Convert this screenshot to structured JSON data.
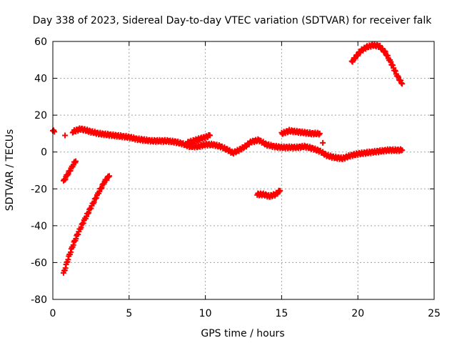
{
  "chart_data": {
    "type": "scatter",
    "title": "Day 338 of 2023, Sidereal Day-to-day VTEC variation (SDTVAR) for receiver falk",
    "xlabel": "GPS time / hours",
    "ylabel": "SDTVAR / TECUs",
    "xlim": [
      0,
      25
    ],
    "ylim": [
      -80,
      60
    ],
    "x_ticks": [
      0,
      5,
      10,
      15,
      20,
      25
    ],
    "x_tick_labels": [
      "0",
      "5",
      "10",
      "15",
      "20",
      "25"
    ],
    "y_ticks": [
      -80,
      -60,
      -40,
      -20,
      0,
      20,
      40,
      60
    ],
    "y_tick_labels": [
      "-80",
      "-60",
      "-40",
      "-20",
      "0",
      "20",
      "40",
      "60"
    ],
    "grid": true,
    "marker": "+",
    "series_color": "#ff0000",
    "series": [
      {
        "name": "start-point",
        "points": [
          [
            0.0,
            11.5
          ],
          [
            0.1,
            11.0
          ]
        ]
      },
      {
        "name": "early-dot",
        "points": [
          [
            0.8,
            9.0
          ]
        ]
      },
      {
        "name": "lower-steep-segment",
        "points": [
          [
            0.7,
            -66
          ],
          [
            1.0,
            -58
          ],
          [
            1.3,
            -51
          ],
          [
            1.6,
            -45
          ],
          [
            2.0,
            -38
          ],
          [
            2.5,
            -30
          ],
          [
            3.0,
            -22
          ],
          [
            3.4,
            -16
          ],
          [
            3.7,
            -13
          ]
        ]
      },
      {
        "name": "short-steep-segment",
        "points": [
          [
            0.7,
            -16
          ],
          [
            0.9,
            -13
          ],
          [
            1.2,
            -9
          ],
          [
            1.4,
            -6
          ],
          [
            1.5,
            -5
          ]
        ]
      },
      {
        "name": "main-band",
        "points": [
          [
            1.3,
            11
          ],
          [
            1.8,
            12.5
          ],
          [
            2.1,
            12
          ],
          [
            2.5,
            11
          ],
          [
            3.0,
            10
          ],
          [
            3.5,
            9.5
          ],
          [
            4.0,
            9
          ],
          [
            4.5,
            8.5
          ],
          [
            5.0,
            8
          ],
          [
            5.5,
            7
          ],
          [
            6.0,
            6.5
          ],
          [
            6.5,
            6
          ],
          [
            7.0,
            6
          ],
          [
            7.5,
            6
          ],
          [
            8.0,
            5.5
          ],
          [
            8.5,
            4.5
          ],
          [
            9.0,
            3
          ],
          [
            9.5,
            3
          ],
          [
            10.0,
            4
          ],
          [
            10.5,
            4
          ],
          [
            11.0,
            3
          ],
          [
            11.5,
            1
          ],
          [
            11.8,
            -0.5
          ],
          [
            12.2,
            1
          ],
          [
            12.6,
            3
          ],
          [
            13.0,
            5.5
          ],
          [
            13.5,
            6.5
          ],
          [
            14.0,
            4
          ],
          [
            14.5,
            3
          ],
          [
            15.0,
            2.5
          ],
          [
            15.5,
            2.5
          ],
          [
            16.0,
            2.5
          ],
          [
            16.5,
            3
          ],
          [
            17.0,
            2
          ],
          [
            17.5,
            0.5
          ],
          [
            18.0,
            -2
          ],
          [
            18.5,
            -3
          ],
          [
            19.0,
            -3.5
          ],
          [
            19.5,
            -2
          ],
          [
            20.0,
            -1
          ],
          [
            20.5,
            -0.5
          ],
          [
            21.0,
            0
          ],
          [
            21.5,
            0.5
          ],
          [
            22.0,
            1
          ],
          [
            22.5,
            1
          ],
          [
            22.9,
            1
          ]
        ]
      },
      {
        "name": "secondary-band",
        "points": [
          [
            8.8,
            5
          ],
          [
            9.2,
            6
          ],
          [
            9.6,
            7
          ],
          [
            10.0,
            8
          ],
          [
            10.3,
            9
          ]
        ]
      },
      {
        "name": "mid-negative-segment",
        "points": [
          [
            13.4,
            -23
          ],
          [
            13.8,
            -23
          ],
          [
            14.2,
            -24
          ],
          [
            14.6,
            -23
          ],
          [
            14.9,
            -21
          ]
        ]
      },
      {
        "name": "upper-mid-segment",
        "points": [
          [
            15.0,
            10
          ],
          [
            15.5,
            11.5
          ],
          [
            16.0,
            11
          ],
          [
            16.5,
            10.5
          ],
          [
            17.0,
            10
          ],
          [
            17.5,
            10
          ]
        ]
      },
      {
        "name": "isolated-point",
        "points": [
          [
            17.7,
            5
          ]
        ]
      },
      {
        "name": "upper-arc",
        "points": [
          [
            19.6,
            49
          ],
          [
            19.9,
            52
          ],
          [
            20.2,
            55
          ],
          [
            20.6,
            57
          ],
          [
            21.0,
            58
          ],
          [
            21.4,
            57.5
          ],
          [
            21.8,
            54
          ],
          [
            22.2,
            48
          ],
          [
            22.6,
            41
          ],
          [
            22.9,
            37
          ]
        ]
      }
    ]
  }
}
